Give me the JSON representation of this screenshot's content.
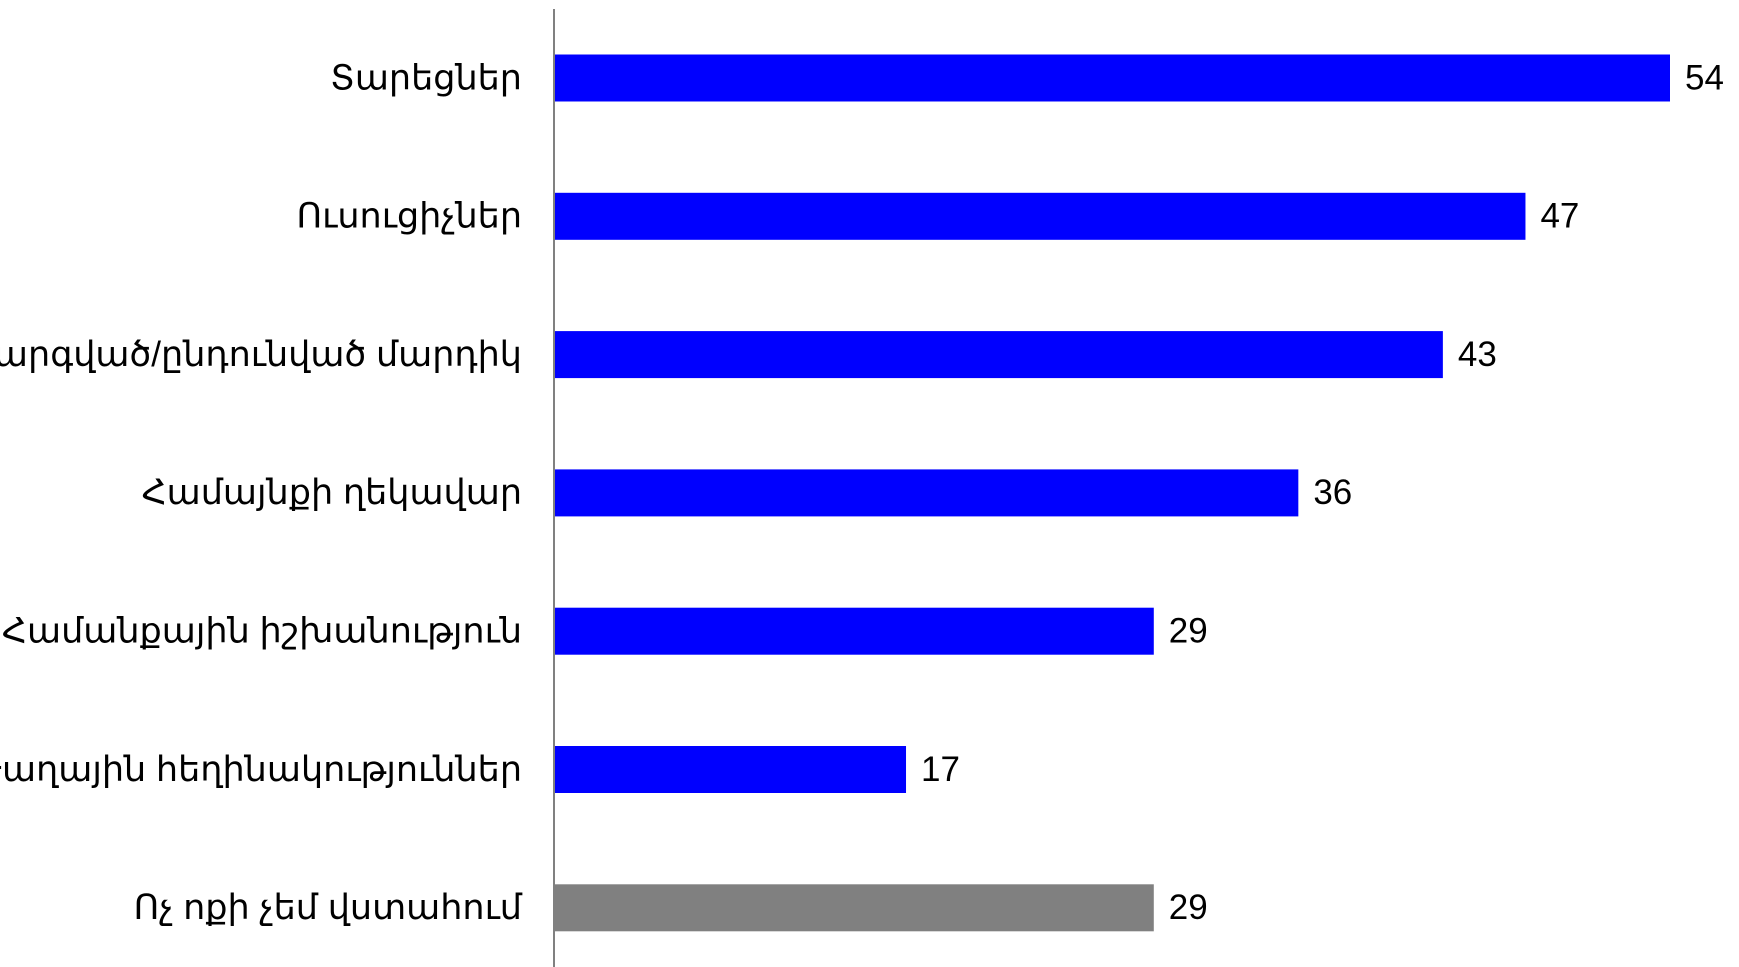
{
  "chart_data": {
    "type": "bar",
    "orientation": "horizontal",
    "categories": [
      "Տարեցներ",
      "Ուսուցիչներ",
      "Հարգված/ընդունված մարդիկ",
      "Համայնքի ղեկավար",
      "Համանքային իշխանություն",
      "Թաղային հեղինակություններ",
      "Ոչ ոքի չեմ վստահում"
    ],
    "values": [
      54,
      47,
      43,
      36,
      29,
      17,
      29
    ],
    "colors": [
      "#0000ff",
      "#0000ff",
      "#0000ff",
      "#0000ff",
      "#0000ff",
      "#0000ff",
      "#808080"
    ],
    "xlim": [
      0,
      54
    ]
  }
}
